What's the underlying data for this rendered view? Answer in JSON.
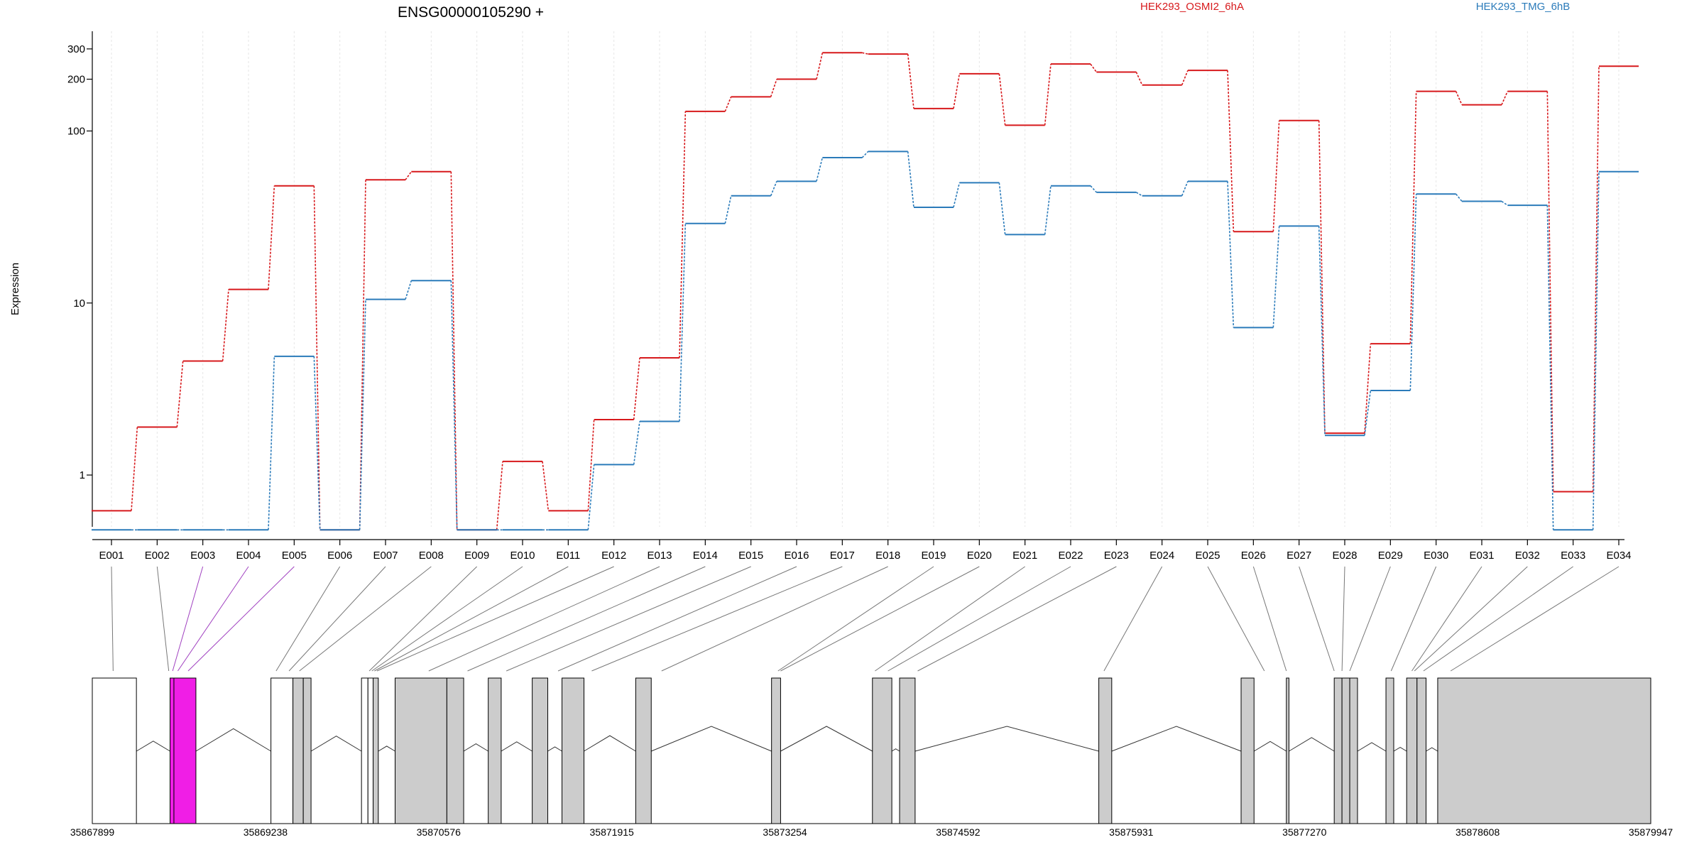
{
  "chart_data": {
    "type": "line",
    "title": "ENSG00000105290 +",
    "ylabel": "Expression",
    "yscale": "log",
    "ylim": [
      0.5,
      380
    ],
    "yticks": [
      {
        "value": 1,
        "label": "1"
      },
      {
        "value": 10,
        "label": "10"
      },
      {
        "value": 100,
        "label": "100"
      },
      {
        "value": 200,
        "label": "200"
      },
      {
        "value": 300,
        "label": "300"
      }
    ],
    "categories": [
      "E001",
      "E002",
      "E003",
      "E004",
      "E005",
      "E006",
      "E007",
      "E008",
      "E009",
      "E010",
      "E011",
      "E012",
      "E013",
      "E014",
      "E015",
      "E016",
      "E017",
      "E018",
      "E019",
      "E020",
      "E021",
      "E022",
      "E023",
      "E024",
      "E025",
      "E026",
      "E027",
      "E028",
      "E029",
      "E030",
      "E031",
      "E032",
      "E033",
      "E034"
    ],
    "series": [
      {
        "name": "HEK293_OSMI2_6hA",
        "color": "#d7191c",
        "values": [
          0.62,
          1.9,
          4.6,
          12,
          48,
          0.48,
          52,
          58,
          0.48,
          1.2,
          0.62,
          2.1,
          4.8,
          130,
          158,
          200,
          285,
          280,
          135,
          215,
          108,
          245,
          220,
          185,
          225,
          26,
          115,
          1.75,
          5.8,
          170,
          142,
          170,
          0.8,
          238
        ]
      },
      {
        "name": "HEK293_TMG_6hB",
        "color": "#2b7bba",
        "values": [
          0.48,
          0.48,
          0.48,
          0.48,
          4.9,
          0.48,
          10.5,
          13.5,
          0.48,
          0.48,
          0.48,
          1.15,
          2.05,
          29,
          42,
          51,
          70,
          76,
          36,
          50,
          25,
          48,
          44,
          42,
          51,
          7.2,
          28,
          1.7,
          3.1,
          43,
          39,
          37,
          0.48,
          58
        ]
      }
    ],
    "grid": "vertical",
    "legend_position": "top"
  },
  "gene_model": {
    "coordinates": [
      "35867899",
      "35869238",
      "35870576",
      "35871915",
      "35873254",
      "35874592",
      "35875931",
      "35877270",
      "35878608",
      "35879947"
    ],
    "coord_min": 35867899,
    "coord_max": 35879947,
    "exon_color": "#cccccc",
    "highlight_color": "#f01ee6",
    "utr_color": "#ffffff"
  }
}
